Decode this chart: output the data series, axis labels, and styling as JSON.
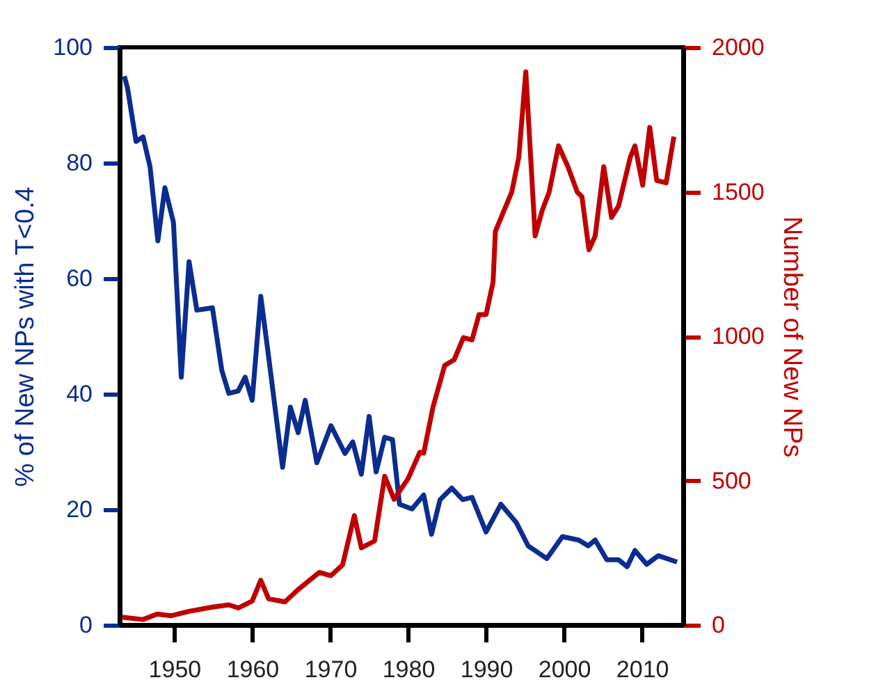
{
  "chart_data": {
    "type": "line",
    "ylabel": "% of New NPs with T<0.4",
    "y2label": "Number of New NPs",
    "xlim": [
      1943,
      2015.3
    ],
    "xticks": [
      1950,
      1960,
      1970,
      1980,
      1990,
      2000,
      2010
    ],
    "ylim": [
      0,
      100
    ],
    "yticks": [
      0,
      20,
      40,
      60,
      80,
      100
    ],
    "y2lim": [
      0,
      2000
    ],
    "y2ticks": [
      0,
      500,
      1000,
      1500,
      2000
    ],
    "grid": false,
    "legend": false,
    "marker": "none",
    "line_style": "solid",
    "series": [
      {
        "color": "#0a2d8f",
        "x": [
          1943.6,
          1944,
          1945.1,
          1946,
          1946.9,
          1947.9,
          1948.8,
          1949.9,
          1950.9,
          1951.9,
          1952.9,
          1954.9,
          1956.1,
          1957,
          1958.2,
          1959.1,
          1960,
          1961.1,
          1962.1,
          1963.9,
          1964.9,
          1965.9,
          1966.8,
          1968.3,
          1970.1,
          1971.9,
          1972.9,
          1974,
          1975,
          1975.9,
          1977,
          1978,
          1978.9,
          1980.5,
          1982,
          1983,
          1984.1,
          1985.6,
          1987,
          1988.2,
          1990,
          1991.9,
          1993.9,
          1995.4,
          1997.8,
          1999.8,
          2001.9,
          2003.1,
          2004,
          2005.5,
          2007,
          2008.1,
          2009.1,
          2010.6,
          2012.1,
          2014.5
        ],
        "values": [
          95,
          93,
          83.7,
          84.5,
          79.3,
          66.5,
          75.7,
          69.7,
          42.9,
          62.9,
          54.5,
          54.9,
          44.1,
          40.1,
          40.5,
          42.9,
          38.9,
          56.9,
          46.5,
          27.3,
          37.7,
          33.3,
          38.9,
          28.1,
          34.5,
          29.7,
          31.7,
          26.1,
          36.1,
          26.5,
          32.5,
          32.1,
          20.9,
          20.1,
          22.5,
          15.7,
          21.7,
          23.7,
          21.7,
          22.1,
          16.1,
          20.9,
          17.7,
          13.7,
          11.5,
          15.3,
          14.7,
          13.7,
          14.7,
          11.3,
          11.3,
          10.1,
          12.9,
          10.5,
          12,
          10.9
        ]
      },
      {
        "color": "#c00000",
        "axis": "y2",
        "x": [
          1943.3,
          1946,
          1947.8,
          1949.6,
          1952,
          1954.9,
          1957,
          1958.2,
          1960,
          1961.1,
          1962.1,
          1964.2,
          1965.9,
          1968.6,
          1970.1,
          1971.6,
          1973.1,
          1974,
          1975.7,
          1977,
          1978.2,
          1980,
          1981.5,
          1982,
          1983.2,
          1984.7,
          1985.9,
          1987.1,
          1988.2,
          1989.1,
          1990,
          1990.9,
          1991.2,
          1993.3,
          1994.2,
          1995.1,
          1996.3,
          1997.2,
          1998.1,
          1999.3,
          2000.5,
          2001.7,
          2002.3,
          2003.2,
          2004,
          2005.1,
          2006.1,
          2007,
          2008.5,
          2009.1,
          2010.1,
          2011,
          2011.9,
          2013.1,
          2014.1
        ],
        "values": [
          27,
          19,
          38,
          32,
          48,
          62,
          70,
          59,
          83,
          155,
          91,
          80,
          123,
          182,
          171,
          208,
          379,
          267,
          291,
          515,
          435,
          507,
          598,
          595,
          755,
          899,
          918,
          995,
          987,
          1075,
          1075,
          1187,
          1363,
          1499,
          1619,
          1915,
          1347,
          1435,
          1499,
          1659,
          1587,
          1499,
          1483,
          1299,
          1347,
          1587,
          1411,
          1451,
          1619,
          1659,
          1523,
          1723,
          1539,
          1531,
          1691
        ]
      }
    ]
  }
}
